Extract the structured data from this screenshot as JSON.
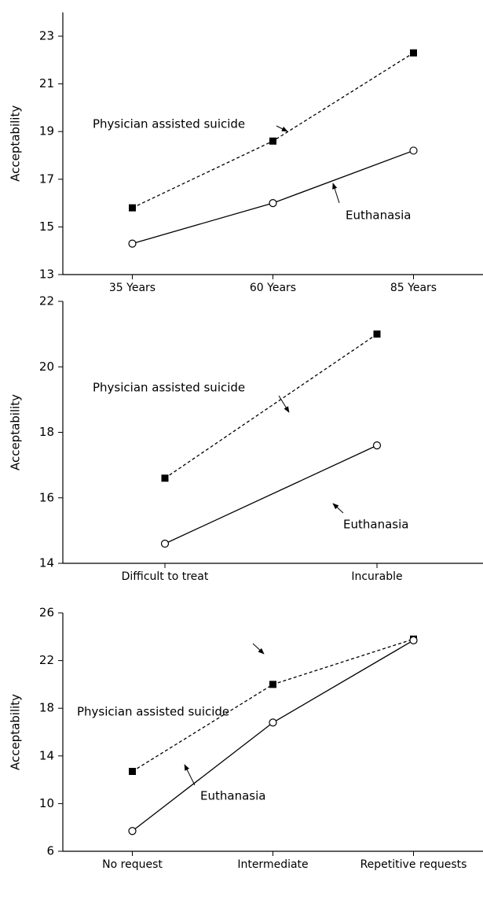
{
  "chart_data": [
    {
      "type": "line",
      "ylabel": "Acceptability",
      "categories": [
        "35 Years",
        "60 Years",
        "85 Years"
      ],
      "ylim": [
        13,
        24
      ],
      "yticks": [
        13,
        15,
        17,
        19,
        21,
        23
      ],
      "series": [
        {
          "name": "Physician assisted suicide",
          "color": "#000000",
          "marker": "square",
          "dashed": true,
          "values": [
            15.8,
            18.6,
            22.3
          ]
        },
        {
          "name": "Euthanasia",
          "color": "#000000",
          "marker": "circle",
          "dashed": false,
          "values": [
            14.3,
            16.0,
            18.2
          ]
        }
      ]
    },
    {
      "type": "line",
      "ylabel": "Acceptability",
      "categories": [
        "Difficult to treat",
        "Incurable"
      ],
      "ylim": [
        14,
        22
      ],
      "yticks": [
        14,
        16,
        18,
        20,
        22
      ],
      "series": [
        {
          "name": "Physician assisted suicide",
          "color": "#000000",
          "marker": "square",
          "dashed": true,
          "values": [
            16.6,
            21.0
          ]
        },
        {
          "name": "Euthanasia",
          "color": "#000000",
          "marker": "circle",
          "dashed": false,
          "values": [
            14.6,
            17.6
          ]
        }
      ]
    },
    {
      "type": "line",
      "ylabel": "Acceptability",
      "categories": [
        "No request",
        "Intermediate",
        "Repetitive requests"
      ],
      "ylim": [
        6,
        26
      ],
      "yticks": [
        6,
        10,
        14,
        18,
        22,
        26
      ],
      "series": [
        {
          "name": "Physician assisted suicide",
          "color": "#000000",
          "marker": "square",
          "dashed": true,
          "values": [
            12.7,
            20.0,
            23.8
          ]
        },
        {
          "name": "Euthanasia",
          "color": "#000000",
          "marker": "circle",
          "dashed": false,
          "values": [
            7.7,
            16.8,
            23.7
          ]
        }
      ]
    }
  ]
}
